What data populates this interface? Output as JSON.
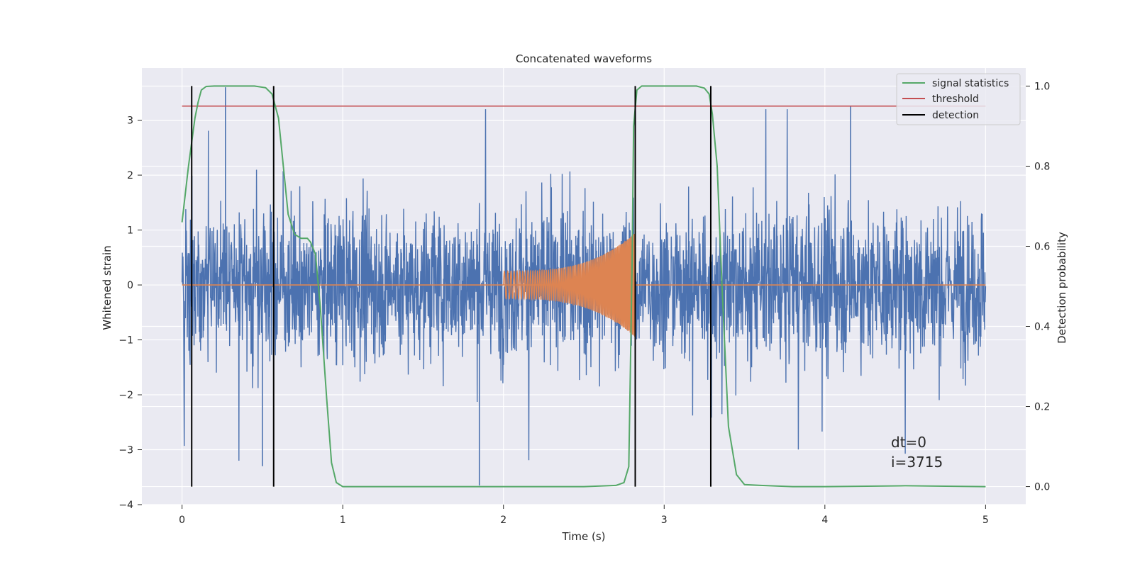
{
  "chart_data": {
    "type": "line",
    "title": "Concatenated waveforms",
    "xlabel": "Time (s)",
    "ylabel": "Whitened strain",
    "y2label": "Detection probability",
    "xlim": [
      -0.25,
      5.25
    ],
    "ylim": [
      -4.0,
      3.95
    ],
    "y2lim": [
      -0.045,
      1.045
    ],
    "xticks": [
      "0",
      "1",
      "2",
      "3",
      "4",
      "5"
    ],
    "yticks": [
      "3",
      "2",
      "1",
      "0",
      "−1",
      "−2",
      "−3",
      "−4"
    ],
    "y2ticks": [
      "1.0",
      "0.8",
      "0.6",
      "0.4",
      "0.2",
      "0.0"
    ],
    "grid": true,
    "legend_position": "top-right",
    "colors": {
      "noise": "#4c72b0",
      "waveform": "#dd8452",
      "signal_statistics": "#55a868",
      "threshold": "#c44e52",
      "detection": "#000000",
      "background": "#eaeaf2"
    },
    "series": [
      {
        "name": "",
        "axis": "left",
        "kind": "noise",
        "x_range": [
          0,
          5
        ],
        "amplitude_envelope": 2.5,
        "notable_peaks": [
          [
            0.27,
            3.6
          ],
          [
            1.85,
            -3.65
          ],
          [
            0.5,
            -3.3
          ],
          [
            4.16,
            3.25
          ]
        ]
      },
      {
        "name": "",
        "axis": "left",
        "kind": "chirp",
        "x_range": [
          2.0,
          2.82
        ],
        "amplitude_start": 0.25,
        "amplitude_peak": 0.95
      },
      {
        "name": "signal statistics",
        "axis": "right",
        "x": [
          0.0,
          0.04,
          0.08,
          0.1,
          0.12,
          0.15,
          0.2,
          0.3,
          0.45,
          0.52,
          0.56,
          0.6,
          0.63,
          0.66,
          0.7,
          0.74,
          0.78,
          0.8,
          0.83,
          0.86,
          0.9,
          0.93,
          0.96,
          1.0,
          1.5,
          2.0,
          2.5,
          2.7,
          2.75,
          2.78,
          2.8,
          2.81,
          2.83,
          2.86,
          2.9,
          3.0,
          3.2,
          3.25,
          3.28,
          3.3,
          3.33,
          3.36,
          3.4,
          3.45,
          3.5,
          3.6,
          3.8,
          4.0,
          4.5,
          5.0
        ],
        "y": [
          0.66,
          0.8,
          0.92,
          0.96,
          0.99,
          0.999,
          1.0,
          1.0,
          1.0,
          0.996,
          0.98,
          0.92,
          0.8,
          0.68,
          0.63,
          0.62,
          0.62,
          0.61,
          0.58,
          0.45,
          0.22,
          0.06,
          0.01,
          0.0,
          0.0,
          0.0,
          0.0,
          0.003,
          0.01,
          0.05,
          0.55,
          0.9,
          0.99,
          1.0,
          1.0,
          1.0,
          1.0,
          0.995,
          0.98,
          0.93,
          0.8,
          0.5,
          0.15,
          0.03,
          0.005,
          0.003,
          0.0,
          0.0,
          0.002,
          0.0
        ]
      },
      {
        "name": "threshold",
        "axis": "right",
        "x": [
          0,
          5
        ],
        "y": [
          0.95,
          0.95
        ]
      },
      {
        "name": "detection",
        "axis": "right",
        "x_positions": [
          0.06,
          0.57,
          2.82,
          3.29
        ],
        "y_range": [
          0.0,
          1.0
        ]
      }
    ],
    "annotation": {
      "line1": "dt=0",
      "line2": "i=3715",
      "x": 4.5,
      "y": -2.9
    }
  }
}
